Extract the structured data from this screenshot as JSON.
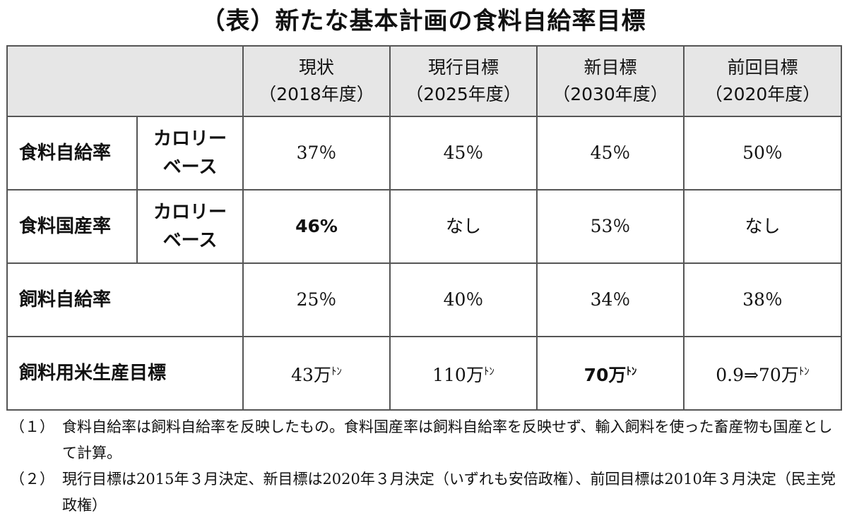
{
  "title": "（表）新たな基本計画の食料自給率目標",
  "table": {
    "columns": [
      {
        "line1": "現状",
        "line2": "（2018年度）"
      },
      {
        "line1": "現行目標",
        "line2": "（2025年度）"
      },
      {
        "line1": "新目標",
        "line2": "（2030年度）"
      },
      {
        "line1": "前回目標",
        "line2": "（2020年度）"
      }
    ],
    "rows": [
      {
        "label": "食料自給率",
        "sub_line1": "カロリー",
        "sub_line2": "ベース",
        "values": [
          {
            "v": "37％",
            "unit": ""
          },
          {
            "v": "45％",
            "unit": ""
          },
          {
            "v": "45％",
            "unit": ""
          },
          {
            "v": "50％",
            "unit": ""
          }
        ]
      },
      {
        "label": "食料国産率",
        "sub_line1": "カロリー",
        "sub_line2": "ベース",
        "values": [
          {
            "v": "46%",
            "unit": ""
          },
          {
            "v": "なし",
            "unit": ""
          },
          {
            "v": "53％",
            "unit": ""
          },
          {
            "v": "なし",
            "unit": ""
          }
        ]
      },
      {
        "label": "飼料自給率",
        "values": [
          {
            "v": "25％",
            "unit": ""
          },
          {
            "v": "40％",
            "unit": ""
          },
          {
            "v": "34％",
            "unit": ""
          },
          {
            "v": "38％",
            "unit": ""
          }
        ]
      },
      {
        "label": "飼料用米生産目標",
        "values": [
          {
            "v": "43万",
            "unit": "ﾄﾝ"
          },
          {
            "v": "110万",
            "unit": "ﾄﾝ"
          },
          {
            "v": "70万",
            "unit": "ﾄﾝ"
          },
          {
            "v": "0.9⇒70万",
            "unit": "ﾄﾝ"
          }
        ]
      }
    ]
  },
  "notes": [
    {
      "num": "（１）",
      "text": "食料自給率は飼料自給率を反映したもの。食料国産率は飼料自給率を反映せず、輸入飼料を使った畜産物も国産として計算。"
    },
    {
      "num": "（２）",
      "text": "現行目標は2015年３月決定、新目標は2020年３月決定（いずれも安倍政権）、前回目標は2010年３月決定（民主党政権）"
    }
  ]
}
